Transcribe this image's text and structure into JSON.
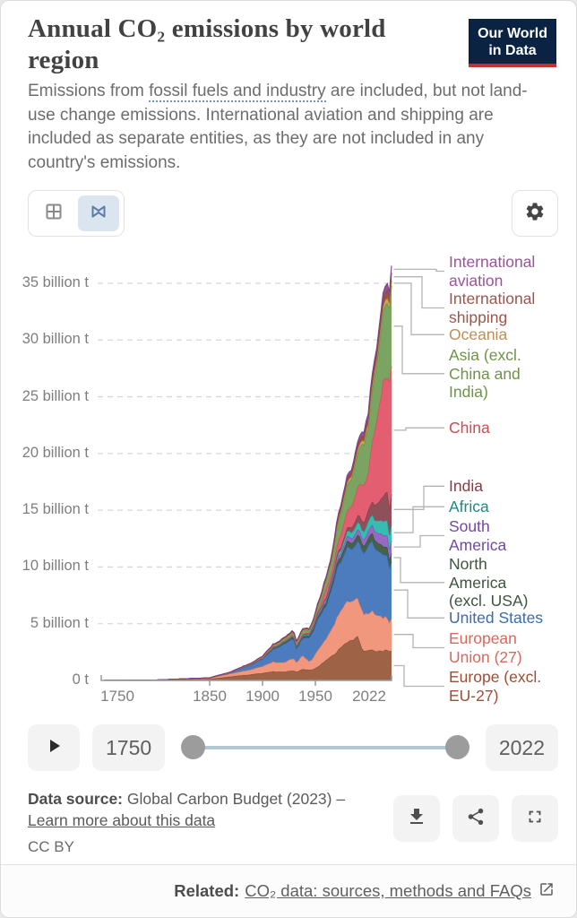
{
  "header": {
    "title": "Annual CO₂ emissions by world region"
  },
  "logo": {
    "line1": "Our World",
    "line2": "in Data"
  },
  "subtitle": {
    "pre": "Emissions from ",
    "link": "fossil fuels and industry",
    "post": " are included, but not land-use change emissions. International aviation and shipping are included as separate entities, as they are not included in any country's emissions."
  },
  "timeline": {
    "start_year": "1750",
    "end_year": "2022"
  },
  "footer": {
    "source_label": "Data source:",
    "source_text": " Global Carbon Budget (2023) – ",
    "source_link": "Learn more about this data",
    "license": "CC BY"
  },
  "related": {
    "label": "Related:",
    "link": "CO₂ data: sources, methods and FAQs"
  },
  "chart_data": {
    "type": "area",
    "stacked": true,
    "unit": "billion t",
    "title": "Annual CO₂ emissions by world region",
    "xlim": [
      1750,
      2022
    ],
    "ylim": [
      0,
      37
    ],
    "grid": "dashed-horizontal",
    "legend_position": "right",
    "y_ticks": [
      {
        "v": 0,
        "label": "0 t"
      },
      {
        "v": 5,
        "label": "5 billion t"
      },
      {
        "v": 10,
        "label": "10 billion t"
      },
      {
        "v": 15,
        "label": "15 billion t"
      },
      {
        "v": 20,
        "label": "20 billion t"
      },
      {
        "v": 25,
        "label": "25 billion t"
      },
      {
        "v": 30,
        "label": "30 billion t"
      },
      {
        "v": 35,
        "label": "35 billion t"
      }
    ],
    "x_ticks": [
      1750,
      1850,
      1900,
      1950,
      2022
    ],
    "x": [
      1750,
      1800,
      1850,
      1870,
      1890,
      1900,
      1910,
      1920,
      1929,
      1932,
      1938,
      1945,
      1950,
      1955,
      1960,
      1965,
      1970,
      1975,
      1980,
      1985,
      1990,
      1995,
      2000,
      2005,
      2009,
      2010,
      2014,
      2018,
      2019,
      2020,
      2021,
      2022
    ],
    "series_note": "listed bottom-to-top in stacking order; values in billion tonnes CO2",
    "series": [
      {
        "id": "europe_excl",
        "name": "Europe (excl. EU-27)",
        "label_lines": [
          "Europe (excl.",
          "EU-27)"
        ],
        "color": "#9e6346",
        "line": "#8a4a2e",
        "label_color": "#9c4f35",
        "values": [
          0.01,
          0.03,
          0.13,
          0.35,
          0.55,
          0.65,
          0.8,
          0.75,
          0.9,
          0.75,
          1.0,
          0.9,
          1.1,
          1.4,
          1.8,
          2.1,
          2.5,
          3.0,
          3.4,
          3.6,
          3.8,
          2.7,
          2.6,
          2.7,
          2.5,
          2.6,
          2.6,
          2.7,
          2.65,
          2.5,
          2.6,
          2.6
        ]
      },
      {
        "id": "eu27",
        "name": "European Union (27)",
        "label_lines": [
          "European",
          "Union (27)"
        ],
        "color": "#f0977e",
        "line": "#e4765a",
        "label_color": "#d9685c",
        "values": [
          0,
          0.01,
          0.08,
          0.25,
          0.45,
          0.6,
          0.85,
          0.8,
          1.1,
          0.85,
          1.2,
          0.7,
          1.3,
          1.6,
          1.9,
          2.4,
          3.0,
          3.3,
          3.6,
          3.4,
          3.4,
          3.3,
          3.3,
          3.4,
          3.0,
          3.1,
          2.9,
          2.9,
          2.9,
          2.5,
          2.7,
          2.8
        ]
      },
      {
        "id": "united_states",
        "name": "United States",
        "label_lines": [
          "United States"
        ],
        "color": "#4c7cbe",
        "line": "#3566ab",
        "label_color": "#3a6bad",
        "values": [
          0,
          0,
          0.02,
          0.1,
          0.45,
          0.66,
          1.1,
          1.6,
          1.8,
          1.2,
          1.5,
          2.2,
          2.55,
          2.8,
          2.9,
          3.4,
          4.3,
          4.4,
          4.8,
          4.6,
          5.1,
          5.4,
          6.0,
          6.1,
          5.5,
          5.7,
          5.6,
          5.4,
          5.3,
          4.7,
          5.0,
          5.1
        ]
      },
      {
        "id": "north_america_excl",
        "name": "North America (excl. USA)",
        "label_lines": [
          "North",
          "America",
          "(excl. USA)"
        ],
        "color": "#44634a",
        "line": "#2f4f36",
        "label_color": "#3e5540",
        "values": [
          0,
          0,
          0,
          0.01,
          0.02,
          0.04,
          0.08,
          0.1,
          0.12,
          0.1,
          0.12,
          0.15,
          0.18,
          0.22,
          0.25,
          0.3,
          0.4,
          0.45,
          0.5,
          0.5,
          0.55,
          0.6,
          0.65,
          0.7,
          0.7,
          0.7,
          0.72,
          0.75,
          0.75,
          0.65,
          0.7,
          0.75
        ]
      },
      {
        "id": "south_america",
        "name": "South America",
        "label_lines": [
          "South",
          "America"
        ],
        "color": "#9569c4",
        "line": "#7b4fae",
        "label_color": "#6f4a9e",
        "values": [
          0,
          0,
          0,
          0,
          0.01,
          0.01,
          0.03,
          0.04,
          0.06,
          0.05,
          0.07,
          0.08,
          0.11,
          0.14,
          0.17,
          0.22,
          0.28,
          0.35,
          0.42,
          0.42,
          0.48,
          0.55,
          0.65,
          0.75,
          0.85,
          0.9,
          1.0,
          1.0,
          1.05,
          0.95,
          1.05,
          1.1
        ]
      },
      {
        "id": "africa",
        "name": "Africa",
        "label_lines": [
          "Africa"
        ],
        "color": "#35bdb1",
        "line": "#19a99d",
        "label_color": "#1d8a80",
        "values": [
          0,
          0,
          0,
          0,
          0.01,
          0.01,
          0.02,
          0.03,
          0.04,
          0.04,
          0.06,
          0.08,
          0.1,
          0.13,
          0.15,
          0.2,
          0.25,
          0.3,
          0.45,
          0.55,
          0.65,
          0.7,
          0.8,
          0.95,
          1.05,
          1.1,
          1.25,
          1.35,
          1.4,
          1.25,
          1.35,
          1.4
        ]
      },
      {
        "id": "india",
        "name": "India",
        "label_lines": [
          "India"
        ],
        "color": "#90505a",
        "line": "#7a3a44",
        "label_color": "#8b3a43",
        "values": [
          0,
          0,
          0,
          0.01,
          0.01,
          0.02,
          0.04,
          0.05,
          0.06,
          0.06,
          0.07,
          0.08,
          0.09,
          0.1,
          0.12,
          0.16,
          0.2,
          0.25,
          0.3,
          0.45,
          0.6,
          0.8,
          1.0,
          1.2,
          1.6,
          1.7,
          2.2,
          2.6,
          2.6,
          2.4,
          2.7,
          2.8
        ]
      },
      {
        "id": "china",
        "name": "China",
        "label_lines": [
          "China"
        ],
        "color": "#e25e70",
        "line": "#d54459",
        "label_color": "#cf4a54",
        "values": [
          0,
          0,
          0,
          0,
          0.01,
          0.01,
          0.02,
          0.02,
          0.03,
          0.03,
          0.04,
          0.04,
          0.08,
          0.3,
          0.8,
          0.5,
          0.8,
          1.2,
          1.5,
          1.9,
          2.5,
          3.3,
          3.4,
          5.9,
          7.7,
          8.6,
          9.9,
          10.3,
          10.5,
          10.9,
          11.5,
          11.4
        ]
      },
      {
        "id": "asia_excl",
        "name": "Asia (excl. China and India)",
        "label_lines": [
          "Asia (excl.",
          "China and",
          "India)"
        ],
        "color": "#7ba361",
        "line": "#5f8c45",
        "label_color": "#6f9447",
        "values": [
          0,
          0,
          0,
          0.01,
          0.03,
          0.06,
          0.1,
          0.15,
          0.2,
          0.2,
          0.3,
          0.2,
          0.35,
          0.5,
          0.7,
          1.0,
          1.5,
          1.9,
          2.3,
          2.5,
          3.0,
          3.6,
          4.0,
          4.6,
          5.2,
          5.5,
          6.2,
          6.7,
          6.8,
          6.5,
          6.7,
          6.9
        ]
      },
      {
        "id": "oceania",
        "name": "Oceania",
        "label_lines": [
          "Oceania"
        ],
        "color": "#c9a853",
        "line": "#b5923c",
        "label_color": "#bc8e5a",
        "values": [
          0,
          0,
          0,
          0.005,
          0.01,
          0.02,
          0.03,
          0.04,
          0.05,
          0.05,
          0.06,
          0.07,
          0.08,
          0.1,
          0.11,
          0.13,
          0.16,
          0.19,
          0.22,
          0.24,
          0.28,
          0.3,
          0.35,
          0.4,
          0.42,
          0.42,
          0.42,
          0.44,
          0.44,
          0.42,
          0.44,
          0.46
        ]
      },
      {
        "id": "intl_shipping",
        "name": "International shipping",
        "label_lines": [
          "International",
          "shipping"
        ],
        "color": "#9e5242",
        "line": "#86402f",
        "label_color": "#9d564b",
        "values": [
          0,
          0,
          0.01,
          0.02,
          0.04,
          0.06,
          0.1,
          0.12,
          0.13,
          0.1,
          0.12,
          0.08,
          0.1,
          0.12,
          0.15,
          0.2,
          0.3,
          0.32,
          0.35,
          0.3,
          0.38,
          0.42,
          0.5,
          0.57,
          0.55,
          0.6,
          0.63,
          0.7,
          0.7,
          0.65,
          0.68,
          0.7
        ]
      },
      {
        "id": "intl_aviation",
        "name": "International aviation",
        "label_lines": [
          "International",
          "aviation"
        ],
        "color": "#91549a",
        "line": "#7a3f85",
        "label_color": "#9c519b",
        "values": [
          0,
          0,
          0,
          0,
          0,
          0,
          0,
          0,
          0.005,
          0.005,
          0.01,
          0.02,
          0.05,
          0.07,
          0.1,
          0.14,
          0.2,
          0.22,
          0.25,
          0.28,
          0.3,
          0.35,
          0.4,
          0.44,
          0.43,
          0.45,
          0.5,
          0.6,
          0.75,
          0.35,
          0.5,
          0.62
        ]
      }
    ]
  }
}
